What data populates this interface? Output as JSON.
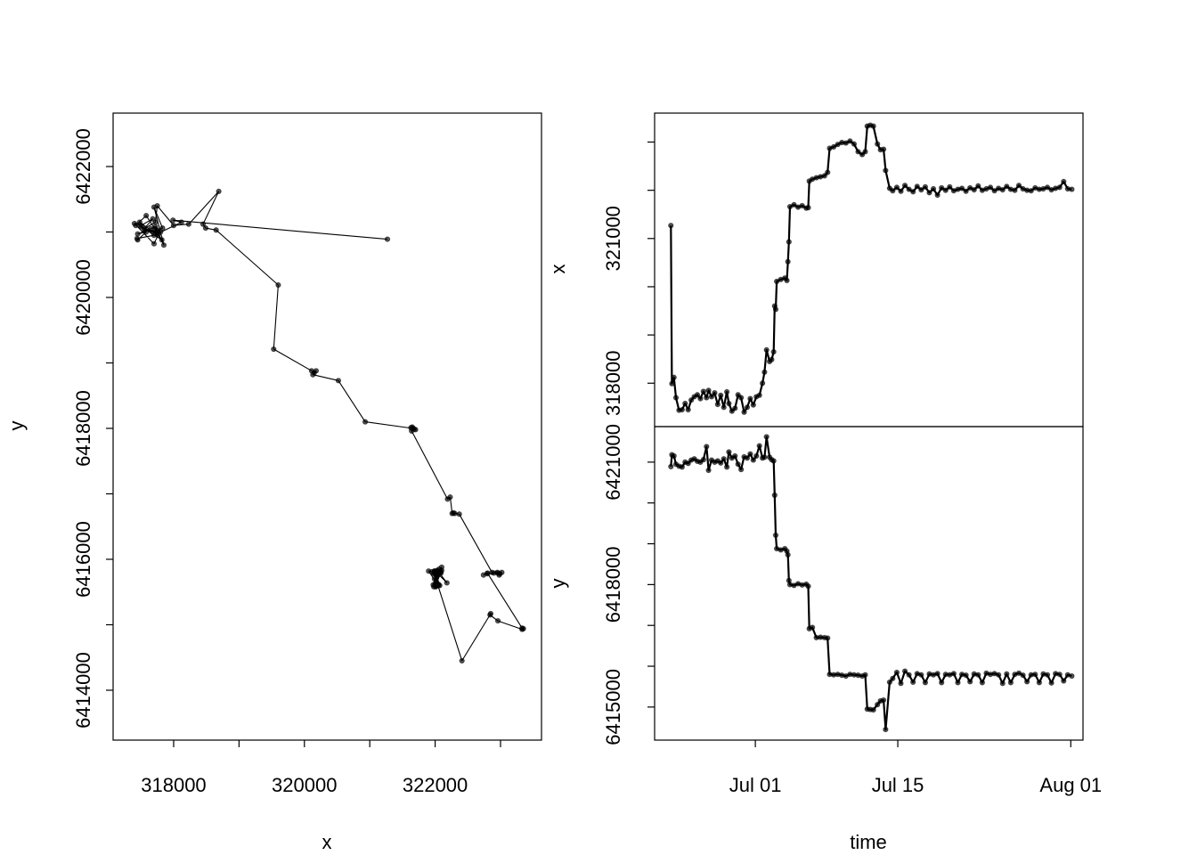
{
  "chart_data": [
    {
      "id": "track",
      "type": "scatter",
      "xlabel": "x",
      "ylabel": "y",
      "xlim": [
        317074,
        323627
      ],
      "ylim": [
        6413238,
        6422816
      ],
      "xticks": [
        318000,
        319000,
        320000,
        321000,
        322000,
        323000
      ],
      "xtick_labels": [
        "318000",
        "",
        "320000",
        "",
        "322000",
        ""
      ],
      "yticks": [
        6414000,
        6415000,
        6416000,
        6417000,
        6418000,
        6419000,
        6420000,
        6421000,
        6422000
      ],
      "ytick_labels": [
        "6414000",
        "",
        "6416000",
        "",
        "6418000",
        "",
        "6420000",
        "",
        "6422000"
      ],
      "grid": false
    },
    {
      "id": "x_vs_time",
      "type": "line",
      "ylabel": "x",
      "ylim": [
        317100,
        323600
      ],
      "yticks": [
        318000,
        319000,
        320000,
        321000,
        322000,
        323000
      ],
      "ytick_labels": [
        "318000",
        "",
        "",
        "321000",
        "",
        ""
      ],
      "grid": false
    },
    {
      "id": "y_vs_time",
      "type": "line",
      "xlabel": "time",
      "ylabel": "y",
      "ylim": [
        6414190,
        6421870
      ],
      "yticks": [
        6415000,
        6416000,
        6417000,
        6418000,
        6419000,
        6420000,
        6421000
      ],
      "ytick_labels": [
        "6415000",
        "",
        "",
        "6418000",
        "",
        "",
        "6421000"
      ],
      "time_unit": "days since Jul 01",
      "xlim": [
        -9.9,
        32.2
      ],
      "xticks": [
        0,
        14,
        31
      ],
      "xtick_labels": [
        "Jul 01",
        "Jul 15",
        "Aug 01"
      ],
      "grid": false
    }
  ],
  "points_columns": [
    "day_since_jul01",
    "x",
    "y"
  ],
  "points": [
    [
      -8.3,
      321270,
      6420890
    ],
    [
      -8.2,
      317990,
      6421180
    ],
    [
      -8.0,
      318120,
      6421150
    ],
    [
      -7.8,
      317700,
      6420950
    ],
    [
      -7.5,
      317440,
      6420900
    ],
    [
      -7.2,
      317450,
      6420880
    ],
    [
      -6.9,
      317580,
      6421000
    ],
    [
      -6.6,
      317450,
      6420970
    ],
    [
      -6.3,
      317650,
      6421050
    ],
    [
      -6.0,
      317720,
      6421080
    ],
    [
      -5.7,
      317760,
      6421020
    ],
    [
      -5.4,
      317680,
      6421000
    ],
    [
      -5.1,
      317830,
      6421060
    ],
    [
      -4.8,
      317700,
      6421380
    ],
    [
      -4.6,
      317850,
      6420800
    ],
    [
      -4.3,
      317720,
      6421050
    ],
    [
      -4.0,
      317800,
      6421000
    ],
    [
      -3.7,
      317560,
      6421030
    ],
    [
      -3.4,
      317750,
      6420980
    ],
    [
      -3.1,
      317500,
      6421080
    ],
    [
      -2.8,
      317820,
      6420880
    ],
    [
      -2.6,
      317580,
      6421250
    ],
    [
      -2.3,
      317420,
      6421100
    ],
    [
      -2.0,
      317480,
      6421150
    ],
    [
      -1.7,
      317760,
      6420950
    ],
    [
      -1.4,
      317700,
      6420820
    ],
    [
      -1.1,
      317400,
      6421130
    ],
    [
      -0.8,
      317500,
      6421100
    ],
    [
      -0.5,
      317680,
      6421200
    ],
    [
      -0.2,
      317550,
      6421050
    ],
    [
      0.1,
      317720,
      6421150
    ],
    [
      0.4,
      317750,
      6421400
    ],
    [
      0.7,
      318000,
      6421100
    ],
    [
      0.9,
      318230,
      6421120
    ],
    [
      1.1,
      318690,
      6421620
    ],
    [
      1.4,
      318450,
      6421120
    ],
    [
      1.6,
      318490,
      6421060
    ],
    [
      1.8,
      318650,
      6421030
    ],
    [
      1.9,
      319600,
      6420190
    ],
    [
      2.0,
      319530,
      6419210
    ],
    [
      2.1,
      320110,
      6418880
    ],
    [
      2.5,
      320150,
      6418850
    ],
    [
      2.9,
      320180,
      6418880
    ],
    [
      3.1,
      320130,
      6418820
    ],
    [
      3.2,
      320520,
      6418730
    ],
    [
      3.3,
      320930,
      6418100
    ],
    [
      3.4,
      321660,
      6418000
    ],
    [
      3.8,
      321700,
      6417980
    ],
    [
      4.2,
      321650,
      6418020
    ],
    [
      4.6,
      321680,
      6417990
    ],
    [
      5.0,
      321630,
      6418010
    ],
    [
      5.2,
      321640,
      6417960
    ],
    [
      5.3,
      322190,
      6416920
    ],
    [
      5.6,
      322230,
      6416950
    ],
    [
      6.0,
      322260,
      6416700
    ],
    [
      6.4,
      322280,
      6416710
    ],
    [
      6.8,
      322300,
      6416700
    ],
    [
      7.1,
      322370,
      6416690
    ],
    [
      7.3,
      322870,
      6415800
    ],
    [
      7.7,
      322900,
      6415790
    ],
    [
      8.1,
      322950,
      6415800
    ],
    [
      8.5,
      322990,
      6415780
    ],
    [
      8.9,
      322980,
      6415760
    ],
    [
      9.3,
      323020,
      6415800
    ],
    [
      9.7,
      322960,
      6415790
    ],
    [
      10.1,
      322800,
      6415780
    ],
    [
      10.5,
      322740,
      6415760
    ],
    [
      10.8,
      322800,
      6415790
    ],
    [
      11.0,
      323330,
      6414950
    ],
    [
      11.3,
      323350,
      6414940
    ],
    [
      11.6,
      323330,
      6414930
    ],
    [
      12.0,
      322960,
      6415060
    ],
    [
      12.3,
      322840,
      6415150
    ],
    [
      12.6,
      322850,
      6415170
    ],
    [
      12.8,
      322410,
      6414450
    ],
    [
      13.2,
      322040,
      6415610
    ],
    [
      13.5,
      321990,
      6415700
    ],
    [
      13.9,
      322060,
      6415850
    ],
    [
      14.3,
      321980,
      6415580
    ],
    [
      14.7,
      322100,
      6415880
    ],
    [
      15.1,
      322020,
      6415790
    ],
    [
      15.5,
      321970,
      6415610
    ],
    [
      15.9,
      322080,
      6415820
    ],
    [
      16.3,
      322010,
      6415790
    ],
    [
      16.7,
      322070,
      6415600
    ],
    [
      17.1,
      321950,
      6415810
    ],
    [
      17.5,
      322030,
      6415790
    ],
    [
      17.9,
      321900,
      6415820
    ],
    [
      18.3,
      322050,
      6415600
    ],
    [
      18.7,
      322000,
      6415800
    ],
    [
      19.1,
      322070,
      6415790
    ],
    [
      19.5,
      321990,
      6415820
    ],
    [
      19.9,
      322020,
      6415600
    ],
    [
      20.3,
      322040,
      6415800
    ],
    [
      20.7,
      321980,
      6415780
    ],
    [
      21.1,
      322050,
      6415620
    ],
    [
      21.5,
      322010,
      6415810
    ],
    [
      21.9,
      322090,
      6415790
    ],
    [
      22.3,
      322000,
      6415600
    ],
    [
      22.7,
      322030,
      6415830
    ],
    [
      23.1,
      322060,
      6415800
    ],
    [
      23.5,
      321990,
      6415820
    ],
    [
      23.9,
      322040,
      6415790
    ],
    [
      24.3,
      322010,
      6415580
    ],
    [
      24.7,
      322080,
      6415810
    ],
    [
      25.1,
      322020,
      6415600
    ],
    [
      25.5,
      322000,
      6415800
    ],
    [
      25.9,
      322100,
      6415830
    ],
    [
      26.3,
      322030,
      6415780
    ],
    [
      26.7,
      322000,
      6415620
    ],
    [
      27.1,
      321990,
      6415790
    ],
    [
      27.5,
      322050,
      6415800
    ],
    [
      27.9,
      322020,
      6415600
    ],
    [
      28.3,
      322030,
      6415810
    ],
    [
      28.7,
      322060,
      6415790
    ],
    [
      29.1,
      322010,
      6415590
    ],
    [
      29.5,
      322040,
      6415820
    ],
    [
      29.9,
      322060,
      6415800
    ],
    [
      30.3,
      322180,
      6415640
    ],
    [
      30.7,
      322030,
      6415790
    ],
    [
      31.1,
      322020,
      6415760
    ]
  ],
  "colors": {
    "line": "#000000",
    "point": "#000000"
  }
}
